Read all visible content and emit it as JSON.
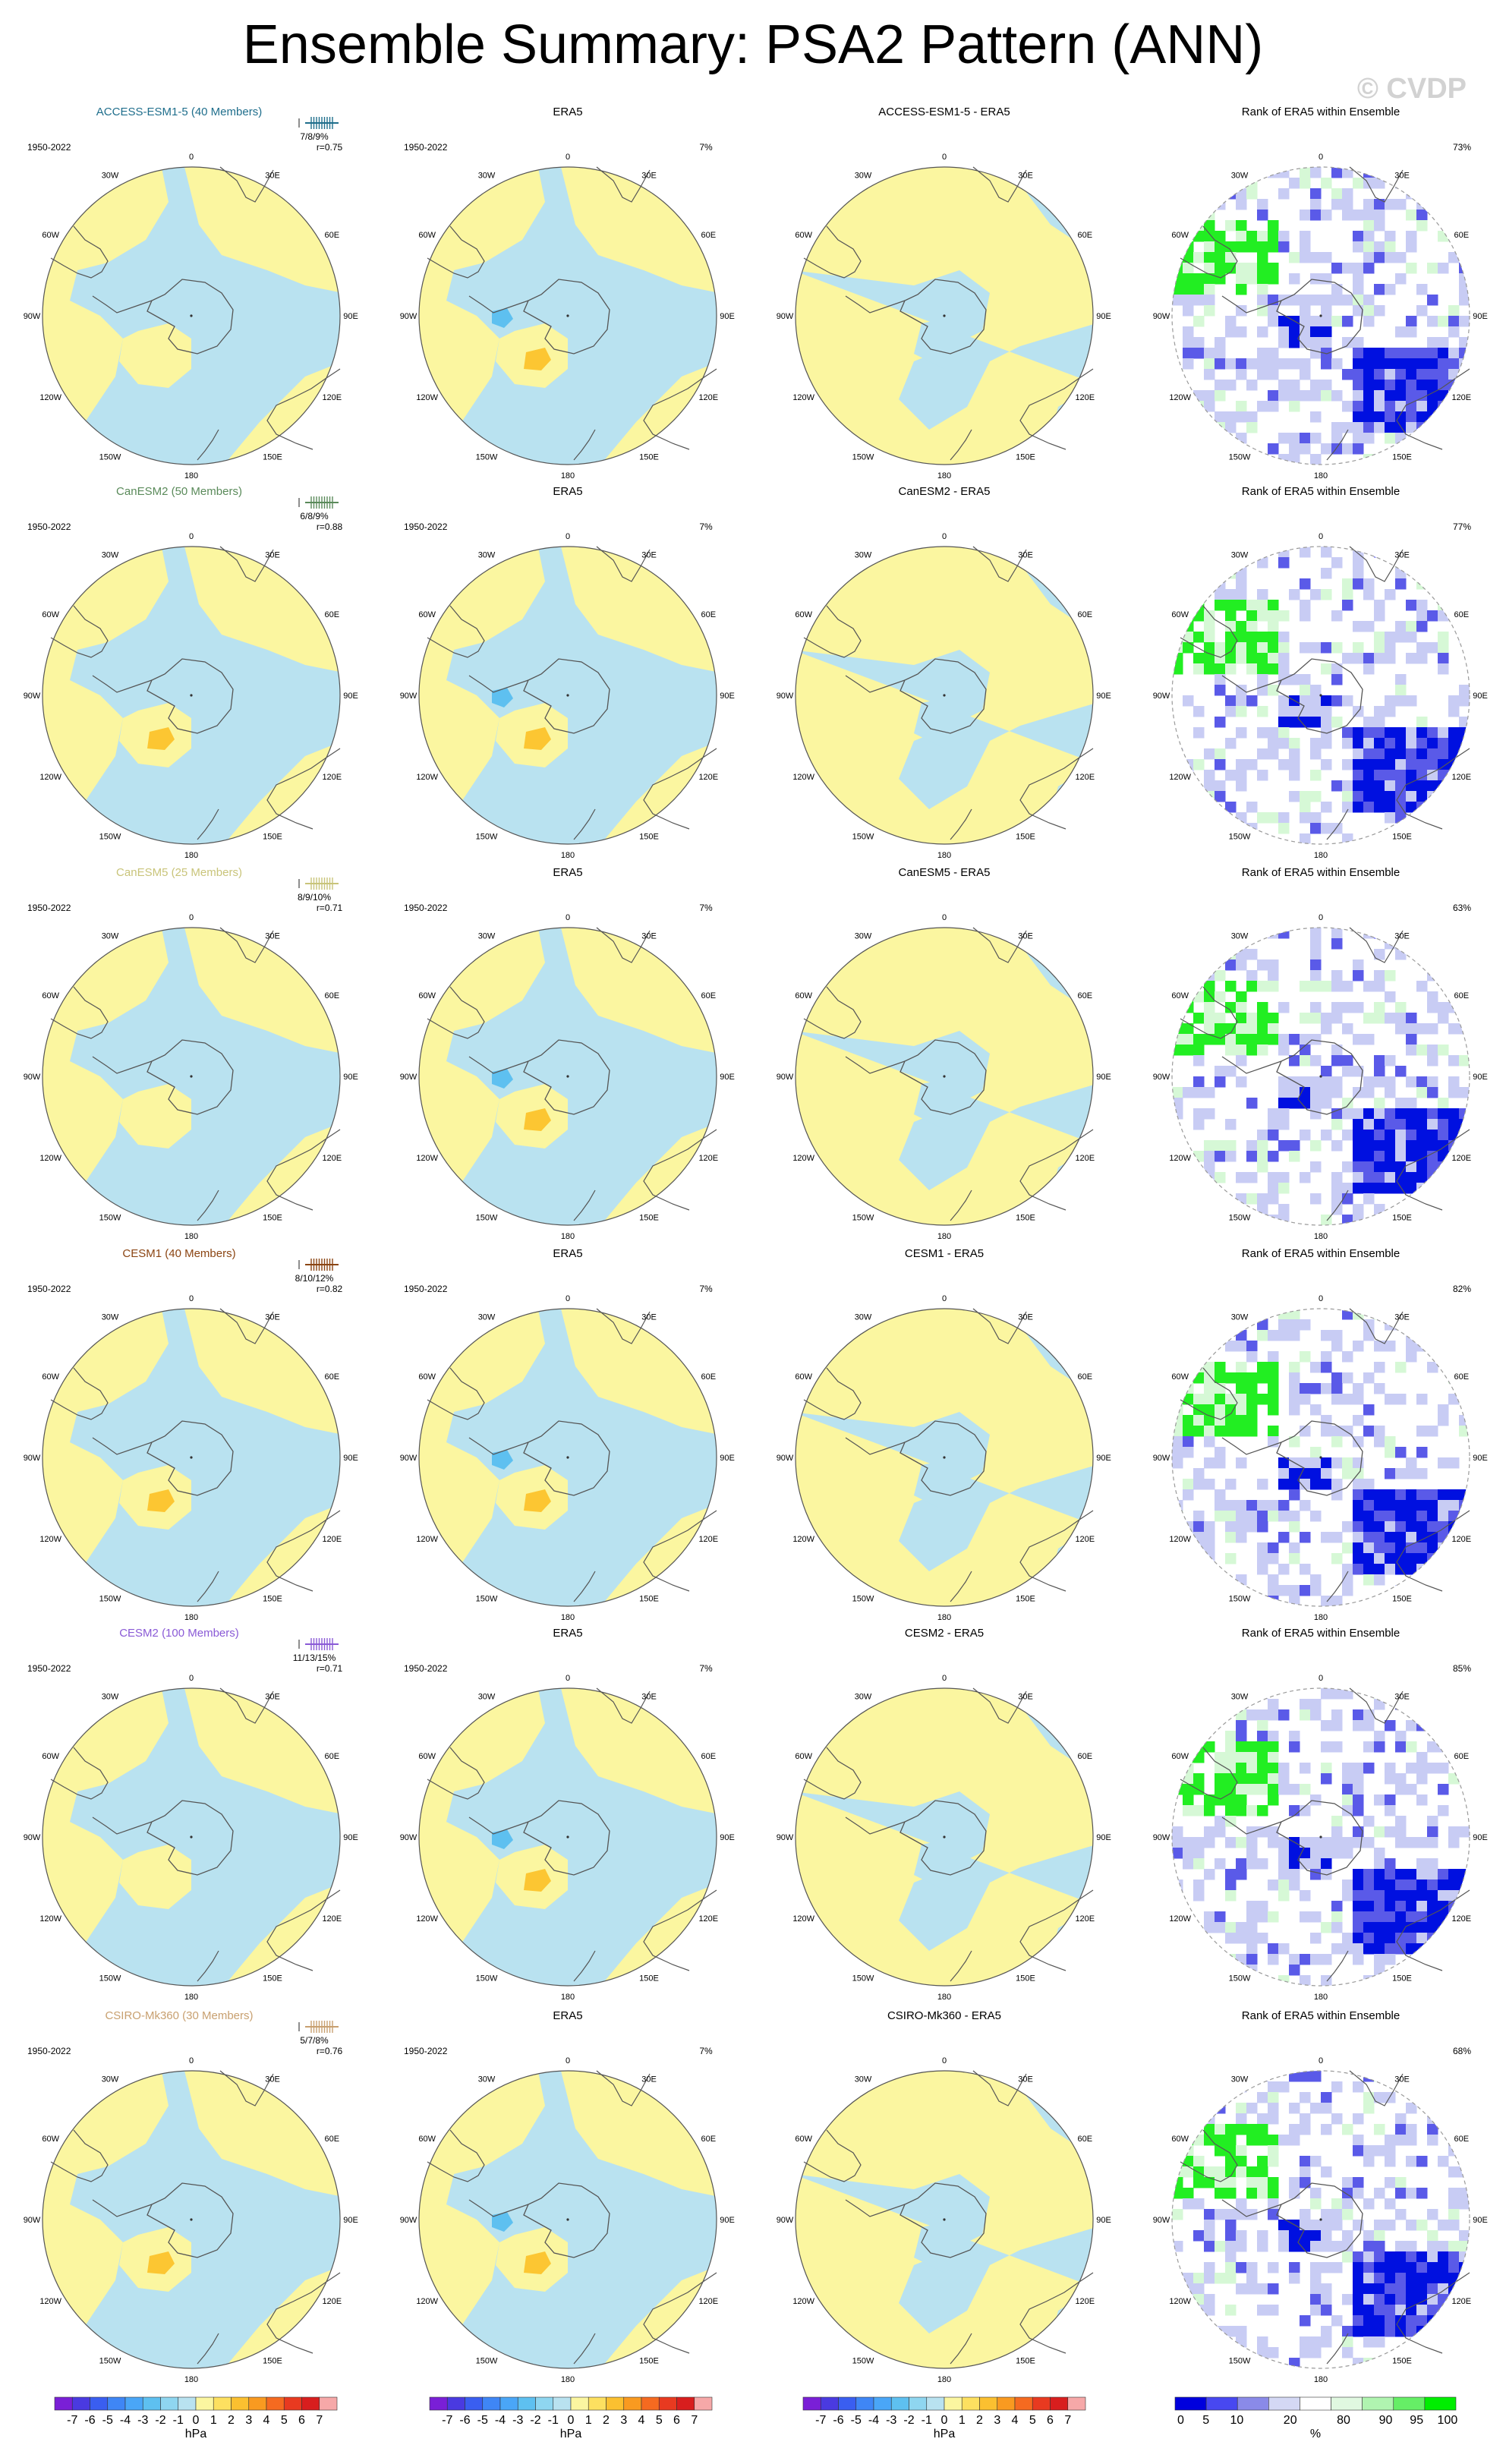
{
  "title": "Ensemble Summary: PSA2 Pattern (ANN)",
  "watermark": "© CVDP",
  "period_label": "1950-2022",
  "obs_name": "ERA5",
  "obs_variance_label": "7%",
  "rank_title": "Rank of ERA5 within Ensemble",
  "lon_labels": [
    "0",
    "30E",
    "60E",
    "90E",
    "120E",
    "150E",
    "180",
    "150W",
    "120W",
    "90W",
    "60W",
    "30W"
  ],
  "rows": [
    {
      "model": "ACCESS-ESM1-5 (40 Members)",
      "color": "#1f6e8c",
      "diff": "ACCESS-ESM1-5 - ERA5",
      "pct": "7/8/9%",
      "r": "r=0.75",
      "rank_pct": "73%"
    },
    {
      "model": "CanESM2 (50 Members)",
      "color": "#5a8a5a",
      "diff": "CanESM2 - ERA5",
      "pct": "6/8/9%",
      "r": "r=0.88",
      "rank_pct": "77%"
    },
    {
      "model": "CanESM5 (25 Members)",
      "color": "#c9c47a",
      "diff": "CanESM5 - ERA5",
      "pct": "8/9/10%",
      "r": "r=0.71",
      "rank_pct": "63%"
    },
    {
      "model": "CESM1 (40 Members)",
      "color": "#8b4513",
      "diff": "CESM1 - ERA5",
      "pct": "8/10/12%",
      "r": "r=0.82",
      "rank_pct": "82%"
    },
    {
      "model": "CESM2 (100 Members)",
      "color": "#8a5ad6",
      "diff": "CESM2 - ERA5",
      "pct": "11/13/15%",
      "r": "r=0.71",
      "rank_pct": "85%"
    },
    {
      "model": "CSIRO-Mk360 (30 Members)",
      "color": "#c8a070",
      "diff": "CSIRO-Mk360 - ERA5",
      "pct": "5/7/8%",
      "r": "r=0.76",
      "rank_pct": "68%"
    }
  ],
  "colorbar_hpa": {
    "labels": [
      "-7",
      "-6",
      "-5",
      "-4",
      "-3",
      "-2",
      "-1",
      "0",
      "1",
      "2",
      "3",
      "4",
      "5",
      "6",
      "7"
    ],
    "unit": "hPa",
    "colors": [
      "#7a1fd6",
      "#4a3ae0",
      "#3a5ef0",
      "#3f86f5",
      "#4aa6f7",
      "#5ec0f0",
      "#8fd6f0",
      "#b9e2f0",
      "#fbf6a0",
      "#fde060",
      "#fbc030",
      "#f99a20",
      "#f56a20",
      "#e83a20",
      "#d81e1e",
      "#f6a8a8"
    ]
  },
  "colorbar_rank": {
    "labels": [
      "0",
      "5",
      "10",
      "20",
      "80",
      "90",
      "95",
      "100"
    ],
    "unit": "%",
    "colors": [
      "#0000dd",
      "#4848f0",
      "#8a8ae8",
      "#d4d8f4",
      "#ffffff",
      "#e0f8e0",
      "#b0f4b0",
      "#66ee66",
      "#00ee00"
    ]
  },
  "chart_data": {
    "type": "heatmap",
    "title": "Ensemble Summary: PSA2 Pattern (ANN)",
    "period": "1950-2022",
    "observation": "ERA5",
    "observation_variance_percent": 7,
    "models": [
      {
        "name": "ACCESS-ESM1-5",
        "members": 40,
        "variance_percent_low_mean_high": [
          7,
          8,
          9
        ],
        "pattern_correlation": 0.75,
        "rank_area_percent": 73
      },
      {
        "name": "CanESM2",
        "members": 50,
        "variance_percent_low_mean_high": [
          6,
          8,
          9
        ],
        "pattern_correlation": 0.88,
        "rank_area_percent": 77
      },
      {
        "name": "CanESM5",
        "members": 25,
        "variance_percent_low_mean_high": [
          8,
          9,
          10
        ],
        "pattern_correlation": 0.71,
        "rank_area_percent": 63
      },
      {
        "name": "CESM1",
        "members": 40,
        "variance_percent_low_mean_high": [
          8,
          10,
          12
        ],
        "pattern_correlation": 0.82,
        "rank_area_percent": 82
      },
      {
        "name": "CESM2",
        "members": 100,
        "variance_percent_low_mean_high": [
          11,
          13,
          15
        ],
        "pattern_correlation": 0.71,
        "rank_area_percent": 85
      },
      {
        "name": "CSIRO-Mk360",
        "members": 30,
        "variance_percent_low_mean_high": [
          5,
          7,
          8
        ],
        "pattern_correlation": 0.76,
        "rank_area_percent": 68
      }
    ],
    "pattern_colorbar_hPa": [
      -7,
      -6,
      -5,
      -4,
      -3,
      -2,
      -1,
      0,
      1,
      2,
      3,
      4,
      5,
      6,
      7
    ],
    "rank_colorbar_percent": [
      0,
      5,
      10,
      20,
      80,
      90,
      95,
      100
    ]
  }
}
